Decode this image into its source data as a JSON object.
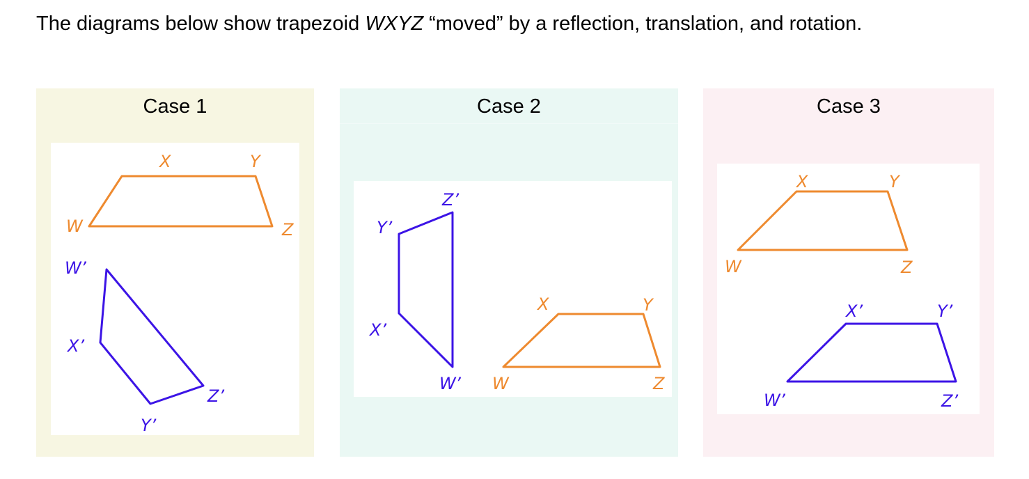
{
  "intro": {
    "before": "The diagrams below show trapezoid ",
    "name": "WXYZ",
    "after": " “moved” by a reflection, translation, and rotation."
  },
  "colors": {
    "original": "#ee8a2f",
    "image": "#3c14e6",
    "case1_bg": "#f7f6e2",
    "case2_bg": "#eaf8f4",
    "case3_bg": "#fcf0f3"
  },
  "cases": [
    {
      "title": "Case 1",
      "labels": {
        "W": "W",
        "X": "X",
        "Y": "Y",
        "Z": "Z",
        "W_prime": "W’",
        "X_prime": "X’",
        "Y_prime": "Y’",
        "Z_prime": "Z’"
      }
    },
    {
      "title": "Case 2",
      "labels": {
        "W": "W",
        "X": "X",
        "Y": "Y",
        "Z": "Z",
        "W_prime": "W’",
        "X_prime": "X’",
        "Y_prime": "Y’",
        "Z_prime": "Z’"
      }
    },
    {
      "title": "Case 3",
      "labels": {
        "W": "W",
        "X": "X",
        "Y": "Y",
        "Z": "Z",
        "W_prime": "W’",
        "X_prime": "X’",
        "Y_prime": "Y’",
        "Z_prime": "Z’"
      }
    }
  ]
}
